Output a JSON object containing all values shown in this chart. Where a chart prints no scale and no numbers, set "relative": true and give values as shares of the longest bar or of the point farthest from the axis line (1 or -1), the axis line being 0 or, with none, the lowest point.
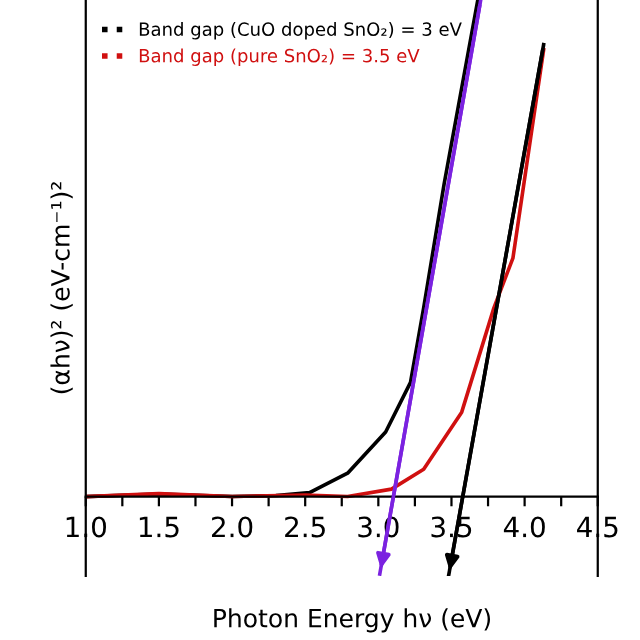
{
  "chart_data": {
    "type": "line",
    "relative": true,
    "xlabel": "Photon Energy hν (eV)",
    "ylabel": "(αhν)² (eV-cm⁻¹)²",
    "xlim": [
      1.0,
      4.5
    ],
    "xticks": [
      {
        "value": 1,
        "label": "1.0"
      },
      {
        "value": 1.25,
        "label": null
      },
      1.5,
      {
        "value": 1.75,
        "label": null
      },
      {
        "value": 2,
        "label": "2.0"
      },
      {
        "value": 2.25,
        "label": null
      },
      2.5,
      {
        "value": 2.75,
        "label": null
      },
      {
        "value": 3,
        "label": "3.0"
      },
      {
        "value": 3.25,
        "label": null
      },
      3.5,
      {
        "value": 3.75,
        "label": null
      },
      {
        "value": 4,
        "label": "4.0"
      },
      {
        "value": 4.25,
        "label": null
      },
      4.5
    ],
    "legend": "top left",
    "grid": false,
    "line_style": "solid",
    "series": [
      {
        "name": "Band gap (CuO doped SnO₂) = 3 eV",
        "color": "#000000",
        "x": [
          1.0,
          1.5,
          2.0,
          2.3,
          2.53,
          2.79,
          3.05,
          3.22,
          3.31,
          3.45,
          3.68
        ],
        "values": [
          0,
          0.005,
          0,
          0.002,
          0.008,
          0.047,
          0.13,
          0.23,
          0.38,
          0.63,
          1.0
        ]
      },
      {
        "name": "Band gap (pure SnO₂) = 3.5 eV",
        "color": "#d01010",
        "x": [
          1.0,
          1.5,
          2.0,
          2.5,
          2.79,
          3.09,
          3.31,
          3.57,
          3.79,
          3.92,
          4.13
        ],
        "values": [
          0,
          0.006,
          0,
          0.003,
          0.0,
          0.015,
          0.055,
          0.17,
          0.38,
          0.48,
          0.9
        ]
      },
      {
        "type": "line",
        "color": "#7b22e0",
        "x": [
          3.7,
          3.01
        ],
        "values": [
          1.0,
          -0.156
        ]
      },
      {
        "type": "line",
        "color": "#000000",
        "x": [
          4.13,
          3.48
        ],
        "values": [
          0.91,
          -0.16
        ]
      }
    ]
  }
}
